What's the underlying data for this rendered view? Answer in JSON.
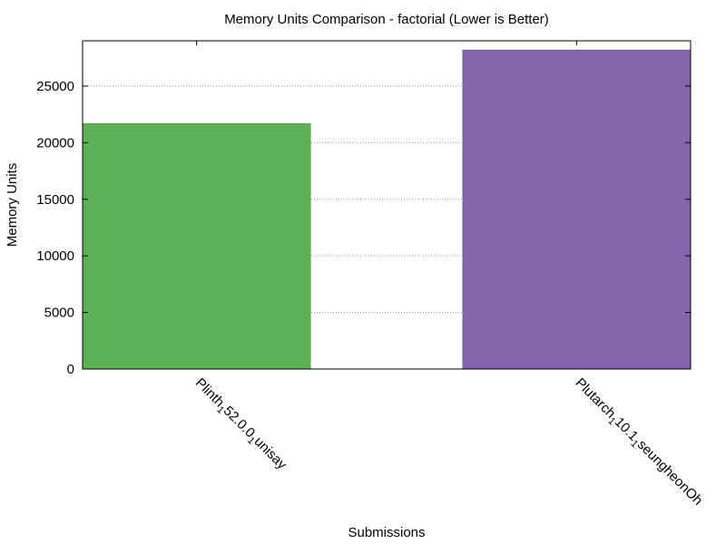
{
  "chart_data": {
    "type": "bar",
    "title": "Memory Units Comparison - factorial (Lower is Better)",
    "xlabel": "Submissions",
    "ylabel": "Memory Units",
    "ylim": [
      0,
      29000
    ],
    "yticks": [
      0,
      5000,
      10000,
      15000,
      20000,
      25000
    ],
    "grid": true,
    "categories": [
      {
        "name": "Plinth",
        "sub1": "1",
        "mid": "52.0.0",
        "sub2": "1",
        "tail": "unisay"
      },
      {
        "name": "Plutarch",
        "sub1": "1",
        "mid": "10.1",
        "sub2": "1",
        "tail": "seungheonOh"
      }
    ],
    "values": [
      21700,
      28200
    ],
    "colors": [
      "#5eb157",
      "#8563ad"
    ]
  }
}
